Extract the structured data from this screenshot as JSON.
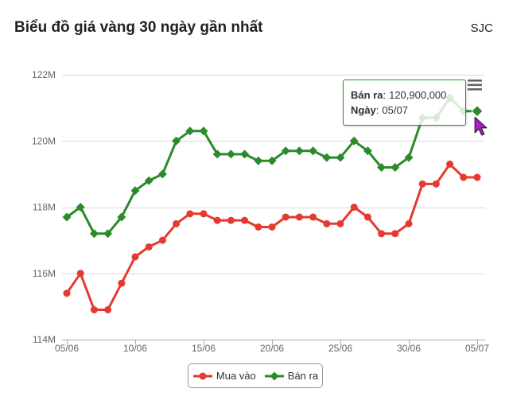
{
  "header": {
    "title": "Biểu đồ giá vàng 30 ngày gần nhất",
    "source": "SJC"
  },
  "chart_menu": {
    "icon": "menu-icon"
  },
  "chart_data": {
    "type": "line",
    "x": [
      "05/06",
      "06/06",
      "07/06",
      "08/06",
      "09/06",
      "10/06",
      "11/06",
      "12/06",
      "13/06",
      "14/06",
      "15/06",
      "16/06",
      "17/06",
      "18/06",
      "19/06",
      "20/06",
      "21/06",
      "22/06",
      "23/06",
      "24/06",
      "25/06",
      "26/06",
      "27/06",
      "28/06",
      "29/06",
      "30/06",
      "01/07",
      "02/07",
      "03/07",
      "04/07",
      "05/07"
    ],
    "ylim": [
      114000000,
      122000000
    ],
    "yticks": [
      114000000,
      116000000,
      118000000,
      120000000,
      122000000
    ],
    "ytick_labels": [
      "114M",
      "116M",
      "118M",
      "120M",
      "122M"
    ],
    "grid": true,
    "legend_position": "bottom-center",
    "series": [
      {
        "name": "Mua vào",
        "color": "#e53a2f",
        "marker": "circle",
        "values": [
          115400000,
          116000000,
          114900000,
          114900000,
          115700000,
          116500000,
          116800000,
          117000000,
          117500000,
          117800000,
          117800000,
          117600000,
          117600000,
          117600000,
          117400000,
          117400000,
          117700000,
          117700000,
          117700000,
          117500000,
          117500000,
          118000000,
          117700000,
          117200000,
          117200000,
          117500000,
          118700000,
          118700000,
          119300000,
          118900000,
          118900000
        ]
      },
      {
        "name": "Bán ra",
        "color": "#2b8b2b",
        "marker": "diamond",
        "values": [
          117700000,
          118000000,
          117200000,
          117200000,
          117700000,
          118500000,
          118800000,
          119000000,
          120000000,
          120300000,
          120300000,
          119600000,
          119600000,
          119600000,
          119400000,
          119400000,
          119700000,
          119700000,
          119700000,
          119500000,
          119500000,
          120000000,
          119700000,
          119200000,
          119200000,
          119500000,
          120700000,
          120700000,
          121300000,
          120900000,
          120900000
        ]
      }
    ]
  },
  "tooltip": {
    "series_label": "Bán ra",
    "value": "120,900,000",
    "date_label": "Ngày",
    "date": "05/07",
    "border_color": "#2b8b2b"
  },
  "cursor": {
    "color": "#b418d6"
  }
}
